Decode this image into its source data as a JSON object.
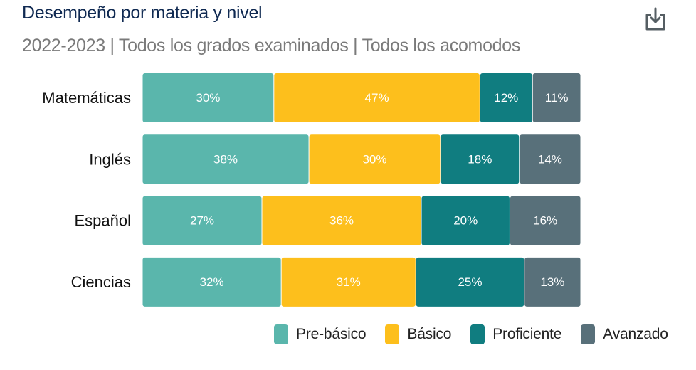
{
  "header": {
    "title": "Desempeño por materia y nivel",
    "subtitle": "2022-2023 | Todos los grados examinados | Todos los acomodos"
  },
  "toolbar": {
    "download_icon": "download-icon"
  },
  "chart_data": {
    "type": "bar",
    "orientation": "horizontal",
    "stacked": true,
    "categories": [
      "Matemáticas",
      "Inglés",
      "Español",
      "Ciencias"
    ],
    "series": [
      {
        "name": "Pre-básico",
        "color": "#5ab6ac",
        "values": [
          30,
          38,
          27,
          32
        ]
      },
      {
        "name": "Básico",
        "color": "#fdbf1c",
        "values": [
          47,
          30,
          36,
          31
        ]
      },
      {
        "name": "Proficiente",
        "color": "#107d80",
        "values": [
          12,
          18,
          20,
          25
        ]
      },
      {
        "name": "Avanzado",
        "color": "#58707a",
        "values": [
          11,
          14,
          16,
          13
        ]
      }
    ],
    "value_suffix": "%",
    "xlim": [
      0,
      100
    ],
    "grid": false,
    "legend_position": "bottom-right"
  }
}
